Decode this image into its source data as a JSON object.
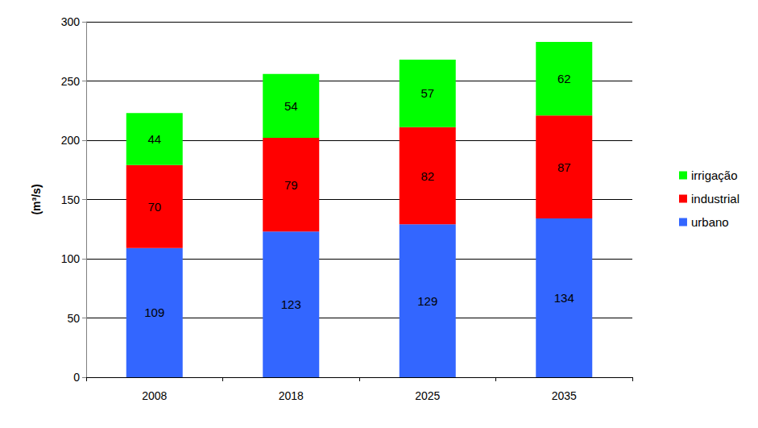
{
  "chart_data": {
    "type": "bar",
    "stacked": true,
    "data_labels": true,
    "grid": true,
    "legend": "right",
    "ylabel": "(m³/s)",
    "categories": [
      "2008",
      "2018",
      "2025",
      "2035"
    ],
    "series": [
      {
        "name": "urbano",
        "color": "#3366ff",
        "values": [
          109,
          123,
          129,
          134
        ]
      },
      {
        "name": "industrial",
        "color": "#ff0000",
        "values": [
          70,
          79,
          82,
          87
        ]
      },
      {
        "name": "irrigação",
        "color": "#00ff00",
        "values": [
          44,
          54,
          57,
          62
        ]
      }
    ],
    "ylim": [
      0,
      300
    ],
    "yticks": [
      0,
      50,
      100,
      150,
      200,
      250,
      300
    ]
  }
}
